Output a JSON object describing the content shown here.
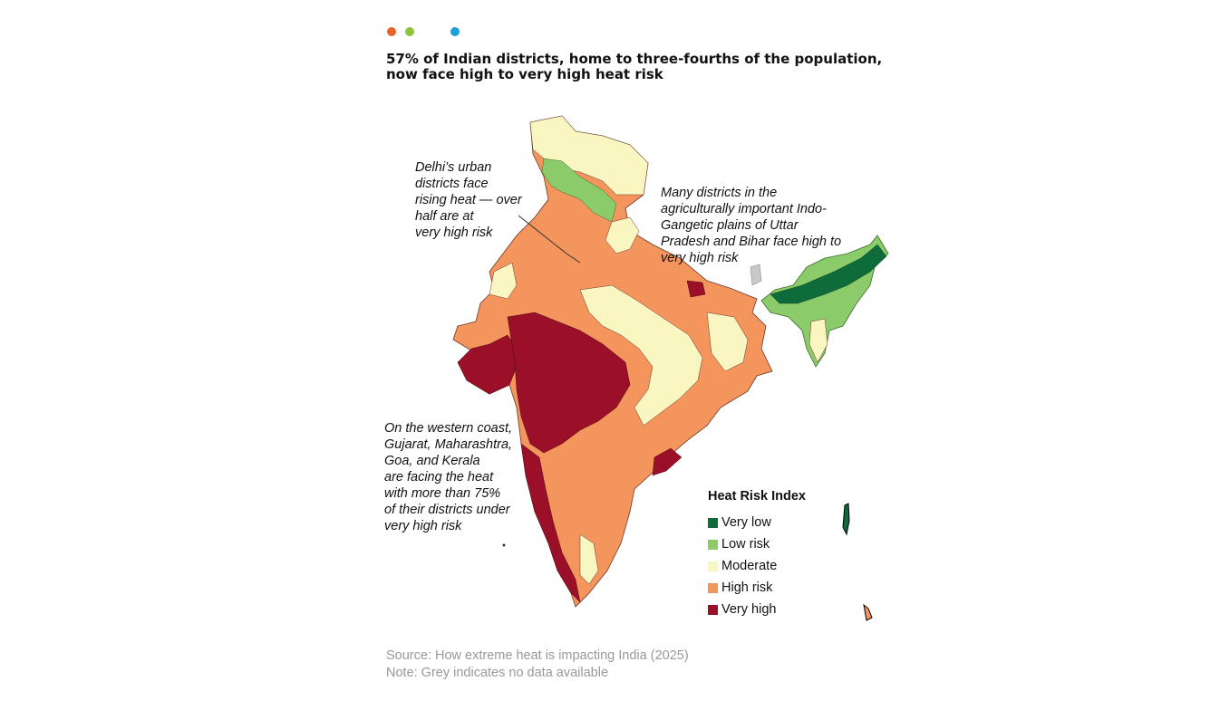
{
  "header": {
    "dot_colors": [
      "#E8632B",
      "#8CC63F",
      "#1BA0D7"
    ],
    "title": "57% of Indian districts, home to three-fourths of the population, now face high to very high heat risk"
  },
  "map": {
    "region": "India",
    "annotations": {
      "delhi": "Delhi’s urban\ndistricts face\nrising heat — over\nhalf are at\nvery high risk",
      "gangetic": "Many districts in the\nagriculturally important Indo-\nGangetic plains of Uttar\nPradesh and Bihar face high to\nvery high risk",
      "western": "On the western coast,\nGujarat, Maharashtra,\nGoa, and Kerala\nare facing the heat\nwith more than 75%\nof their districts under\nvery high risk"
    },
    "legend": {
      "title": "Heat Risk Index",
      "items": [
        {
          "label": "Very low",
          "color": "#0E6B3A"
        },
        {
          "label": "Low risk",
          "color": "#8CCB6A"
        },
        {
          "label": "Moderate",
          "color": "#FAF6C2"
        },
        {
          "label": "High risk",
          "color": "#F3955D"
        },
        {
          "label": "Very high",
          "color": "#9B1028"
        }
      ]
    },
    "no_data_color": "#C9C9C9"
  },
  "footer": {
    "source": "Source: How extreme heat is impacting India (2025)",
    "note": "Note: Grey indicates no data available"
  }
}
